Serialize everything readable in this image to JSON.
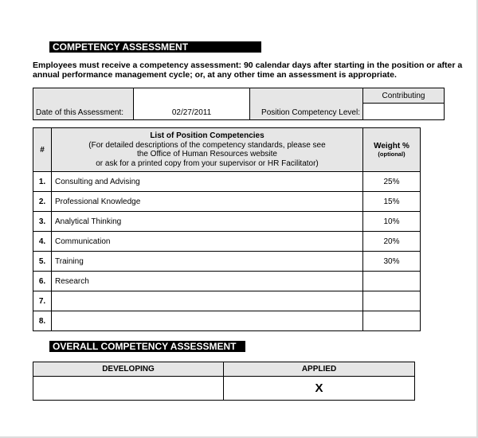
{
  "title": "COMPETENCY ASSESSMENT",
  "intro": [
    "Employees must receive a competency assessment: 90 calendar days after starting in the position or after a",
    "annual performance management cycle; or, at any other time an assessment is appropriate."
  ],
  "info": {
    "date_label": "Date of this Assessment:",
    "date_value": "02/27/2011",
    "level_label": "Position Competency Level:",
    "level_option": "Contributing",
    "level_value": ""
  },
  "competencies": {
    "header_num": "#",
    "header_list": [
      "List of Position Competencies",
      "(For detailed descriptions of the competency standards, please see",
      "the Office of Human Resources website",
      "or ask for a printed copy from your supervisor or HR Facilitator)"
    ],
    "header_weight": "Weight %",
    "header_weight_note": "(optional)",
    "rows": [
      {
        "num": "1.",
        "name": "Consulting and Advising",
        "weight": "25%"
      },
      {
        "num": "2.",
        "name": "Professional Knowledge",
        "weight": "15%"
      },
      {
        "num": "3.",
        "name": "Analytical Thinking",
        "weight": "10%"
      },
      {
        "num": "4.",
        "name": "Communication",
        "weight": "20%"
      },
      {
        "num": "5.",
        "name": "Training",
        "weight": "30%"
      },
      {
        "num": "6.",
        "name": "Research",
        "weight": ""
      },
      {
        "num": "7.",
        "name": "",
        "weight": ""
      },
      {
        "num": "8.",
        "name": "",
        "weight": ""
      }
    ]
  },
  "overall": {
    "title": "OVERALL COMPETENCY ASSESSMENT",
    "developing_label": "DEVELOPING",
    "applied_label": "APPLIED",
    "developing_mark": "",
    "applied_mark": "X"
  }
}
